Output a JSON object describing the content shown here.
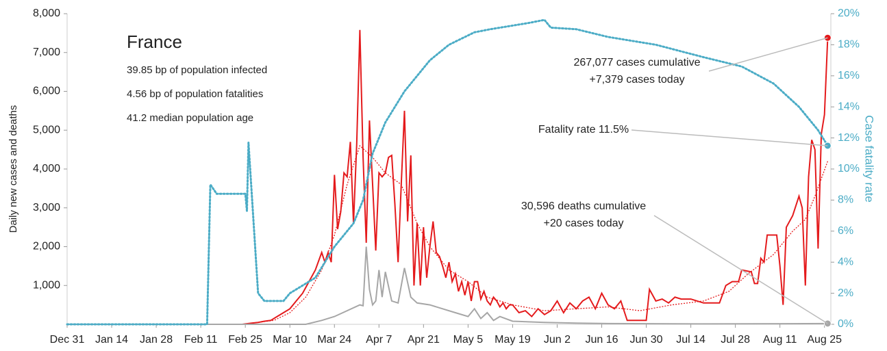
{
  "chart_data": {
    "type": "line",
    "title": "France",
    "info": [
      "39.85 bp of population infected",
      "4.56 bp of population fatalities",
      "41.2 median population age"
    ],
    "y_label": "Daily new cases and deaths",
    "y2_label": "Case fatality rate",
    "xlim": [
      0,
      240
    ],
    "xticks": [
      {
        "value": 0,
        "label": "Dec 31"
      },
      {
        "value": 14,
        "label": "Jan 14"
      },
      {
        "value": 28,
        "label": "Jan 28"
      },
      {
        "value": 42,
        "label": "Feb 11"
      },
      {
        "value": 56,
        "label": "Feb 25"
      },
      {
        "value": 70,
        "label": "Mar 10"
      },
      {
        "value": 84,
        "label": "Mar 24"
      },
      {
        "value": 98,
        "label": "Apr 7"
      },
      {
        "value": 112,
        "label": "Apr 21"
      },
      {
        "value": 126,
        "label": "May 5"
      },
      {
        "value": 140,
        "label": "May 19"
      },
      {
        "value": 154,
        "label": "Jun 2"
      },
      {
        "value": 168,
        "label": "Jun 16"
      },
      {
        "value": 182,
        "label": "Jun 30"
      },
      {
        "value": 196,
        "label": "Jul 14"
      },
      {
        "value": 210,
        "label": "Jul 28"
      },
      {
        "value": 224,
        "label": "Aug 11"
      },
      {
        "value": 238,
        "label": "Aug 25"
      }
    ],
    "ylim": [
      0,
      8000
    ],
    "yticks": [
      {
        "value": 1000,
        "label": "1,000"
      },
      {
        "value": 2000,
        "label": "2,000"
      },
      {
        "value": 3000,
        "label": "3,000"
      },
      {
        "value": 4000,
        "label": "4,000"
      },
      {
        "value": 5000,
        "label": "5,000"
      },
      {
        "value": 6000,
        "label": "6,000"
      },
      {
        "value": 7000,
        "label": "7,000"
      },
      {
        "value": 8000,
        "label": "8,000"
      }
    ],
    "y2lim": [
      0,
      20
    ],
    "y2ticks": [
      {
        "value": 0,
        "label": "0%"
      },
      {
        "value": 2,
        "label": "2%"
      },
      {
        "value": 4,
        "label": "4%"
      },
      {
        "value": 6,
        "label": "6%"
      },
      {
        "value": 8,
        "label": "8%"
      },
      {
        "value": 10,
        "label": "10%"
      },
      {
        "value": 12,
        "label": "12%"
      },
      {
        "value": 14,
        "label": "14%"
      },
      {
        "value": 16,
        "label": "16%"
      },
      {
        "value": 18,
        "label": "18%"
      },
      {
        "value": 20,
        "label": "20%"
      }
    ],
    "series": [
      {
        "color": "#e41a1c",
        "style": "solid",
        "marker_last": true,
        "x": [
          0,
          55,
          58,
          60,
          62,
          64,
          66,
          68,
          70,
          72,
          74,
          76,
          78,
          80,
          81,
          82,
          83,
          84,
          85,
          86,
          87,
          88,
          89,
          90,
          91,
          92,
          93,
          94,
          95,
          96,
          97,
          98,
          99,
          100,
          101,
          102,
          103,
          104,
          105,
          106,
          107,
          108,
          109,
          110,
          111,
          112,
          113,
          114,
          115,
          116,
          117,
          118,
          119,
          120,
          121,
          122,
          123,
          124,
          125,
          126,
          127,
          128,
          129,
          130,
          131,
          132,
          133,
          134,
          135,
          136,
          137,
          138,
          139,
          140,
          142,
          144,
          146,
          148,
          150,
          152,
          154,
          156,
          158,
          160,
          162,
          164,
          166,
          168,
          170,
          172,
          174,
          176,
          180,
          182,
          183,
          185,
          187,
          189,
          191,
          193,
          196,
          200,
          205,
          207,
          209,
          211,
          212,
          215,
          216,
          217,
          218,
          219,
          220,
          223,
          224,
          225,
          226,
          228,
          230,
          231,
          232,
          233,
          234,
          235,
          236,
          237,
          238,
          239
        ],
        "values": [
          0,
          0,
          30,
          50,
          80,
          100,
          200,
          300,
          400,
          600,
          800,
          1100,
          1400,
          1850,
          1600,
          1850,
          1600,
          3850,
          2450,
          2900,
          3900,
          3800,
          4700,
          2600,
          4650,
          7580,
          4300,
          2100,
          5250,
          3600,
          1900,
          3900,
          3800,
          3900,
          4300,
          4350,
          3100,
          1600,
          3600,
          5500,
          2650,
          4350,
          1000,
          2600,
          1000,
          2500,
          1200,
          2000,
          2650,
          1850,
          1750,
          1500,
          1200,
          1600,
          1100,
          1300,
          850,
          1100,
          750,
          1100,
          600,
          1100,
          1100,
          650,
          850,
          600,
          500,
          700,
          600,
          450,
          550,
          400,
          500,
          500,
          300,
          350,
          200,
          400,
          250,
          350,
          600,
          300,
          550,
          400,
          600,
          700,
          400,
          800,
          500,
          400,
          600,
          100,
          100,
          100,
          900,
          600,
          650,
          550,
          700,
          650,
          650,
          550,
          550,
          1000,
          1100,
          1100,
          1400,
          1350,
          1050,
          1050,
          1700,
          1600,
          2300,
          2300,
          1500,
          500,
          2500,
          2800,
          3300,
          3000,
          1000,
          3800,
          4750,
          4500,
          1950,
          4900,
          5400,
          7379
        ]
      },
      {
        "color": "#e41a1c",
        "style": "dotted",
        "x": [
          55,
          65,
          70,
          75,
          80,
          84,
          88,
          92,
          96,
          100,
          105,
          110,
          114,
          120,
          126,
          132,
          140,
          150,
          160,
          170,
          180,
          190,
          200,
          208,
          214,
          222,
          228,
          232,
          235,
          239
        ],
        "values": [
          0,
          100,
          300,
          700,
          1400,
          2300,
          3600,
          4600,
          4300,
          3900,
          3600,
          2600,
          2000,
          1400,
          1100,
          700,
          500,
          350,
          400,
          450,
          350,
          500,
          600,
          850,
          1300,
          1800,
          2400,
          2700,
          3300,
          4200
        ]
      },
      {
        "color": "#a6a6a6",
        "style": "solid",
        "marker_last": true,
        "x": [
          0,
          75,
          80,
          84,
          88,
          92,
          93,
          94,
          95,
          96,
          97,
          98,
          99,
          100,
          102,
          104,
          106,
          108,
          110,
          114,
          118,
          122,
          126,
          128,
          130,
          132,
          134,
          136,
          140,
          150,
          160,
          170,
          200,
          239
        ],
        "values": [
          0,
          0,
          100,
          200,
          350,
          500,
          480,
          2000,
          900,
          500,
          600,
          1400,
          700,
          1350,
          600,
          550,
          1450,
          700,
          550,
          500,
          400,
          300,
          200,
          400,
          150,
          300,
          100,
          200,
          80,
          50,
          30,
          20,
          10,
          20
        ]
      },
      {
        "color": "#4bacc6",
        "style": "dotted",
        "axis": "y2",
        "marker_last": true,
        "x": [
          0,
          44,
          45,
          47,
          56,
          56.5,
          57,
          60,
          62,
          68,
          70,
          78,
          84,
          90,
          93,
          96,
          100,
          106,
          114,
          120,
          128,
          133,
          145,
          150,
          152,
          160,
          170,
          185,
          200,
          212,
          222,
          230,
          236,
          239
        ],
        "values": [
          0,
          0,
          9,
          8.4,
          8.4,
          7.3,
          11.7,
          2,
          1.5,
          1.5,
          2,
          3,
          5,
          6.5,
          8,
          11,
          13,
          15,
          17,
          18,
          18.8,
          19,
          19.4,
          19.6,
          19.1,
          19,
          18.5,
          18,
          17.2,
          16.6,
          15.5,
          14,
          12.5,
          11.5
        ]
      }
    ],
    "annotations": [
      {
        "lines": [
          "267,077 cases cumulative",
          "+7,379 cases today"
        ],
        "series": 0
      },
      {
        "lines": [
          "Fatality rate 11.5%"
        ],
        "series": 3
      },
      {
        "lines": [
          "30,596 deaths cumulative",
          "+20 cases today"
        ],
        "series": 2
      }
    ]
  }
}
